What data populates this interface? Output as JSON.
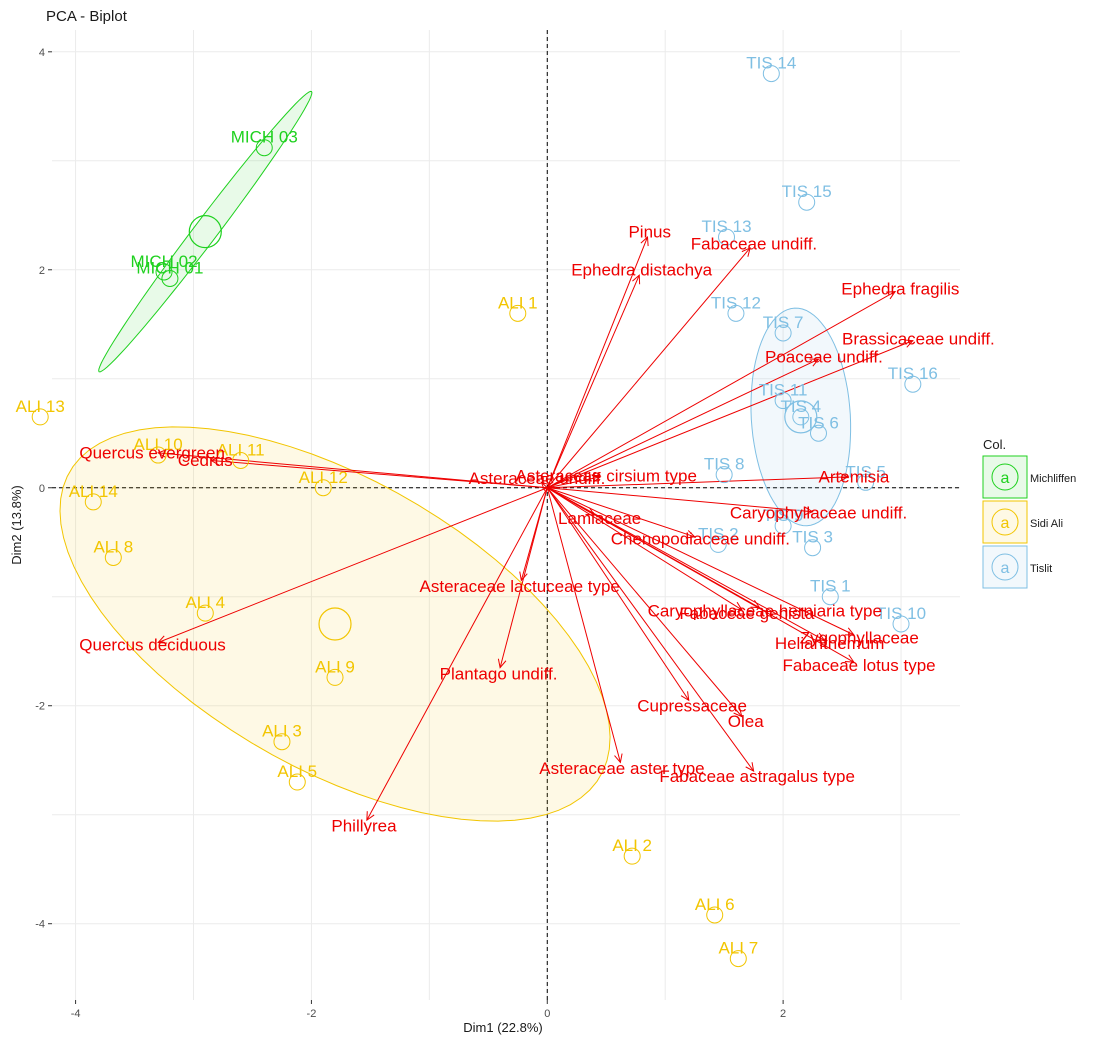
{
  "title": "PCA - Biplot",
  "colors": {
    "Michliffen": "#1fd11f",
    "Sidi Ali": "#f2c500",
    "Tislit": "#7fbfe3",
    "variables": "#ee0000"
  },
  "legend": {
    "title": "Col.",
    "key_glyph": "a",
    "placement": "right",
    "items": [
      "Michliffen",
      "Sidi Ali",
      "Tislit"
    ]
  },
  "chart_data": {
    "type": "scatter",
    "title": "PCA - Biplot",
    "xlabel": "Dim1 (22.8%)",
    "ylabel": "Dim2 (13.8%)",
    "xlim": [
      -4.2,
      3.5
    ],
    "ylim": [
      -4.7,
      4.2
    ],
    "xticks": [
      -4,
      -2,
      0,
      2
    ],
    "yticks": [
      -4,
      -2,
      0,
      2,
      4
    ],
    "grid": true,
    "legend_position": "right",
    "individuals": [
      {
        "label": "MICH 01",
        "group": "Michliffen",
        "x": -3.2,
        "y": 1.92
      },
      {
        "label": "MICH 02",
        "group": "Michliffen",
        "x": -3.25,
        "y": 1.98
      },
      {
        "label": "MICH 03",
        "group": "Michliffen",
        "x": -2.4,
        "y": 3.12
      },
      {
        "label": "ALI 1",
        "group": "Sidi Ali",
        "x": -0.25,
        "y": 1.6
      },
      {
        "label": "ALI 2",
        "group": "Sidi Ali",
        "x": 0.72,
        "y": -3.38
      },
      {
        "label": "ALI 3",
        "group": "Sidi Ali",
        "x": -2.25,
        "y": -2.33
      },
      {
        "label": "ALI 4",
        "group": "Sidi Ali",
        "x": -2.9,
        "y": -1.15
      },
      {
        "label": "ALI 5",
        "group": "Sidi Ali",
        "x": -2.12,
        "y": -2.7
      },
      {
        "label": "ALI 6",
        "group": "Sidi Ali",
        "x": 1.42,
        "y": -3.92
      },
      {
        "label": "ALI 7",
        "group": "Sidi Ali",
        "x": 1.62,
        "y": -4.32
      },
      {
        "label": "ALI 8",
        "group": "Sidi Ali",
        "x": -3.68,
        "y": -0.64
      },
      {
        "label": "ALI 9",
        "group": "Sidi Ali",
        "x": -1.8,
        "y": -1.74
      },
      {
        "label": "ALI 10",
        "group": "Sidi Ali",
        "x": -3.3,
        "y": 0.3
      },
      {
        "label": "ALI 11",
        "group": "Sidi Ali",
        "x": -2.6,
        "y": 0.25
      },
      {
        "label": "ALI 12",
        "group": "Sidi Ali",
        "x": -1.9,
        "y": 0.0
      },
      {
        "label": "ALI 13",
        "group": "Sidi Ali",
        "x": -4.3,
        "y": 0.65
      },
      {
        "label": "ALI 14",
        "group": "Sidi Ali",
        "x": -3.85,
        "y": -0.13
      },
      {
        "label": "TIS 1",
        "group": "Tislit",
        "x": 2.4,
        "y": -1.0
      },
      {
        "label": "TIS 2",
        "group": "Tislit",
        "x": 1.45,
        "y": -0.52
      },
      {
        "label": "TIS 3",
        "group": "Tislit",
        "x": 2.25,
        "y": -0.55
      },
      {
        "label": "TIS 4",
        "group": "Tislit",
        "x": 2.15,
        "y": 0.65
      },
      {
        "label": "TIS 5",
        "group": "Tislit",
        "x": 2.7,
        "y": 0.05
      },
      {
        "label": "TIS 6",
        "group": "Tislit",
        "x": 2.3,
        "y": 0.5
      },
      {
        "label": "TIS 7",
        "group": "Tislit",
        "x": 2.0,
        "y": 1.42
      },
      {
        "label": "TIS 8",
        "group": "Tislit",
        "x": 1.5,
        "y": 0.12
      },
      {
        "label": "TIS 9",
        "group": "Tislit",
        "x": 2.0,
        "y": -0.35
      },
      {
        "label": "TIS 10",
        "group": "Tislit",
        "x": 3.0,
        "y": -1.25
      },
      {
        "label": "TIS 11",
        "group": "Tislit",
        "x": 2.0,
        "y": 0.8
      },
      {
        "label": "TIS 12",
        "group": "Tislit",
        "x": 1.6,
        "y": 1.6
      },
      {
        "label": "TIS 13",
        "group": "Tislit",
        "x": 1.52,
        "y": 2.3
      },
      {
        "label": "TIS 14",
        "group": "Tislit",
        "x": 1.9,
        "y": 3.8
      },
      {
        "label": "TIS 15",
        "group": "Tislit",
        "x": 2.2,
        "y": 2.62
      },
      {
        "label": "TIS 16",
        "group": "Tislit",
        "x": 3.1,
        "y": 0.95
      }
    ],
    "group_centroids": [
      {
        "group": "Michliffen",
        "x": -2.9,
        "y": 2.35
      },
      {
        "group": "Sidi Ali",
        "x": -1.8,
        "y": -1.25
      },
      {
        "group": "Tislit",
        "x": 2.15,
        "y": 0.65
      }
    ],
    "confidence_ellipses": [
      {
        "group": "Michliffen",
        "cx": -2.9,
        "cy": 2.35,
        "rx": 1.57,
        "ry": 0.1,
        "angle_deg": 55
      },
      {
        "group": "Sidi Ali",
        "cx": -1.8,
        "cy": -1.25,
        "rx": 2.65,
        "ry": 1.3,
        "angle_deg": -33
      },
      {
        "group": "Tislit",
        "cx": 2.15,
        "cy": 0.65,
        "rx": 1.0,
        "ry": 0.42,
        "angle_deg": 93
      }
    ],
    "variables": [
      {
        "label": "Pinus",
        "x": 0.85,
        "y": 2.3
      },
      {
        "label": "Fabaceae undiff.",
        "x": 1.72,
        "y": 2.2
      },
      {
        "label": "Ephedra distachya",
        "x": 0.78,
        "y": 1.95
      },
      {
        "label": "Ephedra fragilis",
        "x": 2.95,
        "y": 1.8
      },
      {
        "label": "Brassicaceae undiff.",
        "x": 3.1,
        "y": 1.35
      },
      {
        "label": "Poaceae undiff.",
        "x": 2.3,
        "y": 1.18
      },
      {
        "label": "Quercus evergreen",
        "x": -3.3,
        "y": 0.32
      },
      {
        "label": "Cedrus",
        "x": -2.85,
        "y": 0.25
      },
      {
        "label": "Asteraceae undiff.",
        "x": -0.05,
        "y": 0.05
      },
      {
        "label": "Asteraceae  cirsium type",
        "x": 0.45,
        "y": 0.1
      },
      {
        "label": "Artemisia",
        "x": 2.55,
        "y": 0.1
      },
      {
        "label": "Caryophyllaceae undiff.",
        "x": 2.25,
        "y": -0.22
      },
      {
        "label": "Lamiaceae",
        "x": 0.4,
        "y": -0.25
      },
      {
        "label": "Chenopodiaceae undiff.",
        "x": 1.25,
        "y": -0.45
      },
      {
        "label": "Asteraceae  lactuceae  type",
        "x": -0.22,
        "y": -0.85
      },
      {
        "label": "Caryophyllaceae herniaria type",
        "x": 1.8,
        "y": -1.1
      },
      {
        "label": "Fabaceae genista",
        "x": 1.65,
        "y": -1.12
      },
      {
        "label": "Zygophyllaceae",
        "x": 2.6,
        "y": -1.35
      },
      {
        "label": "Helianthemum",
        "x": 2.35,
        "y": -1.4
      },
      {
        "label": "Quercus deciduous",
        "x": -3.3,
        "y": -1.42
      },
      {
        "label": "Fabaceae lotus type",
        "x": 2.6,
        "y": -1.6
      },
      {
        "label": "Plantago undiff.",
        "x": -0.4,
        "y": -1.65
      },
      {
        "label": "Cupressaceae",
        "x": 1.2,
        "y": -1.95
      },
      {
        "label": "Olea",
        "x": 1.65,
        "y": -2.1
      },
      {
        "label": "Asteraceae aster type",
        "x": 0.62,
        "y": -2.52
      },
      {
        "label": "Fabaceae astragalus type",
        "x": 1.75,
        "y": -2.6
      },
      {
        "label": "Phillyrea",
        "x": -1.53,
        "y": -3.05
      }
    ]
  }
}
